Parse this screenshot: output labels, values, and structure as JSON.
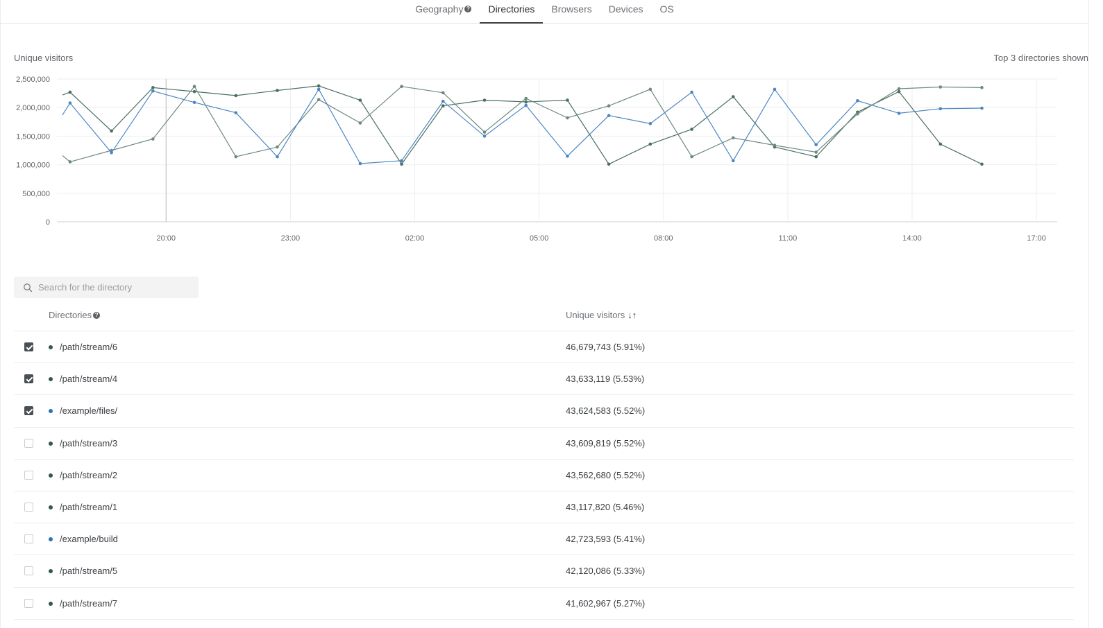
{
  "tabs": [
    {
      "label": "Geography",
      "has_help": true,
      "active": false
    },
    {
      "label": "Directories",
      "has_help": false,
      "active": true
    },
    {
      "label": "Browsers",
      "has_help": false,
      "active": false
    },
    {
      "label": "Devices",
      "has_help": false,
      "active": false
    },
    {
      "label": "OS",
      "has_help": false,
      "active": false
    }
  ],
  "chart": {
    "left_label": "Unique visitors",
    "right_label": "Top 3 directories shown"
  },
  "chart_data": {
    "type": "line",
    "ylim": [
      0,
      2500000
    ],
    "y_ticks": [
      0,
      500000,
      1000000,
      1500000,
      2000000,
      2500000
    ],
    "y_tick_labels": [
      "0",
      "500,000",
      "1,000,000",
      "1,500,000",
      "2,000,000",
      "2,500,000"
    ],
    "x_range_hours": [
      17.5,
      41.5
    ],
    "x_ticks": [
      20,
      23,
      26,
      29,
      32,
      35,
      38,
      41
    ],
    "x_tick_labels": [
      "20:00",
      "23:00",
      "02:00",
      "05:00",
      "08:00",
      "11:00",
      "14:00",
      "17:00"
    ],
    "grid": true,
    "x": [
      17.5,
      17.683,
      18.683,
      19.683,
      20.683,
      21.683,
      22.683,
      23.683,
      24.683,
      25.683,
      26.683,
      27.683,
      28.683,
      29.683,
      30.683,
      31.683,
      32.683,
      33.683,
      34.683,
      35.683,
      36.683,
      37.683,
      38.683,
      39.683,
      40.683
    ],
    "series": [
      {
        "color": "#4a6e60",
        "values": [
          2220000,
          2270000,
          1590000,
          2350000,
          2280000,
          2210000,
          2300000,
          2380000,
          2130000,
          1010000,
          2030000,
          2130000,
          2100000,
          2130000,
          1010000,
          1360000,
          1620000,
          2190000,
          1310000,
          1140000,
          1920000,
          2280000,
          1360000,
          1010000,
          null
        ]
      },
      {
        "color": "#6d8a80",
        "values": [
          1160000,
          1050000,
          1250000,
          1450000,
          2370000,
          1140000,
          1310000,
          2140000,
          1730000,
          2370000,
          2260000,
          1570000,
          2160000,
          1820000,
          2030000,
          2320000,
          1140000,
          1470000,
          1340000,
          1220000,
          1890000,
          2330000,
          2360000,
          2350000,
          null
        ]
      },
      {
        "color": "#4b86c4",
        "values": [
          1870000,
          2080000,
          1210000,
          2290000,
          2090000,
          1910000,
          1140000,
          2320000,
          1020000,
          1070000,
          2110000,
          1500000,
          2040000,
          1150000,
          1860000,
          1720000,
          2270000,
          1070000,
          2320000,
          1350000,
          2120000,
          1900000,
          1980000,
          1990000,
          null
        ]
      }
    ],
    "hover_x": 20
  },
  "search": {
    "placeholder": "Search for the directory",
    "value": ""
  },
  "table": {
    "col_directory": "Directories",
    "col_visitors": "Unique visitors",
    "sort_icon": "↓↑",
    "rows": [
      {
        "checked": true,
        "dot": "#2e5a4a",
        "directory": "/path/stream/6",
        "visitors": "46,679,743 (5.91%)"
      },
      {
        "checked": true,
        "dot": "#2e5a4a",
        "directory": "/path/stream/4",
        "visitors": "43,633,119 (5.53%)"
      },
      {
        "checked": true,
        "dot": "#2f6fb8",
        "directory": "/example/files/",
        "visitors": "43,624,583 (5.52%)"
      },
      {
        "checked": false,
        "dot": "#2e5a4a",
        "directory": "/path/stream/3",
        "visitors": "43,609,819 (5.52%)"
      },
      {
        "checked": false,
        "dot": "#2e5a4a",
        "directory": "/path/stream/2",
        "visitors": "43,562,680 (5.52%)"
      },
      {
        "checked": false,
        "dot": "#2e5a4a",
        "directory": "/path/stream/1",
        "visitors": "43,117,820 (5.46%)"
      },
      {
        "checked": false,
        "dot": "#2f6fb8",
        "directory": "/example/build",
        "visitors": "42,723,593 (5.41%)"
      },
      {
        "checked": false,
        "dot": "#2e5a4a",
        "directory": "/path/stream/5",
        "visitors": "42,120,086 (5.33%)"
      },
      {
        "checked": false,
        "dot": "#2e5a4a",
        "directory": "/path/stream/7",
        "visitors": "41,602,967 (5.27%)"
      }
    ]
  }
}
